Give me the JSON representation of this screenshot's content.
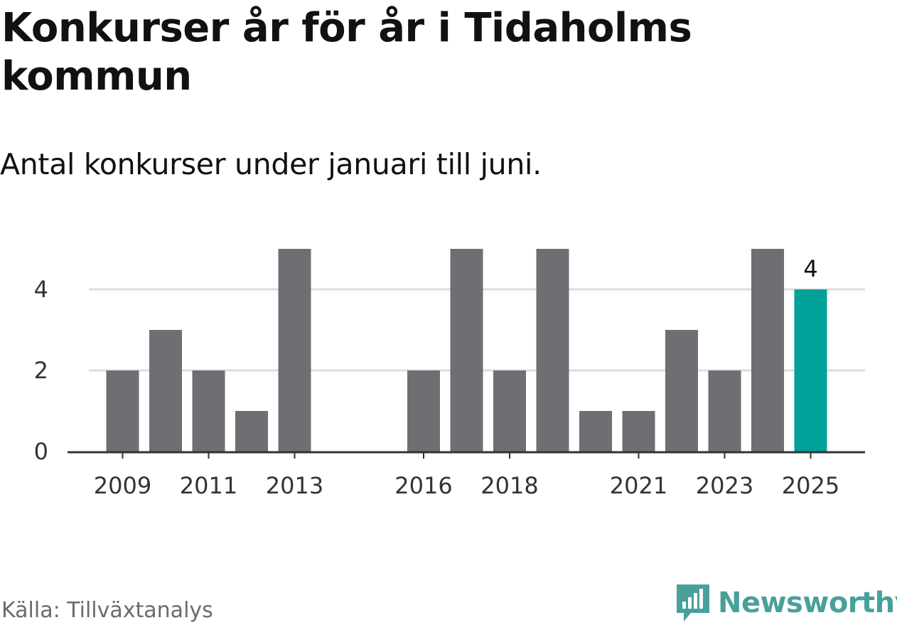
{
  "header": {
    "title": "Konkurser år för år i Tidaholms kommun",
    "subtitle": "Antal konkurser under januari till juni."
  },
  "footer": {
    "source": "Källa: Tillväxtanalys",
    "brand": "Newsworthy"
  },
  "colors": {
    "bar": "#6f6e73",
    "highlight": "#00a29a",
    "grid": "#dddddd",
    "axis": "#333333",
    "brand": "#49a09a"
  },
  "chart_data": {
    "type": "bar",
    "title": "Konkurser år för år i Tidaholms kommun",
    "subtitle": "Antal konkurser under januari till juni.",
    "categories": [
      "2009",
      "2010",
      "2011",
      "2012",
      "2013",
      "2014",
      "2015",
      "2016",
      "2017",
      "2018",
      "2019",
      "2020",
      "2021",
      "2022",
      "2023",
      "2024",
      "2025"
    ],
    "values": [
      2,
      3,
      2,
      1,
      5,
      0,
      0,
      2,
      5,
      2,
      5,
      1,
      1,
      3,
      2,
      5,
      4
    ],
    "highlight_index": 16,
    "highlight_label": "4",
    "x_tick_labels": [
      "2009",
      "2011",
      "2013",
      "2016",
      "2018",
      "2021",
      "2023",
      "2025"
    ],
    "y_ticks": [
      0,
      2,
      4
    ],
    "ylim": [
      0,
      5
    ],
    "xlabel": "",
    "ylabel": "",
    "grid": true,
    "legend": "none"
  }
}
